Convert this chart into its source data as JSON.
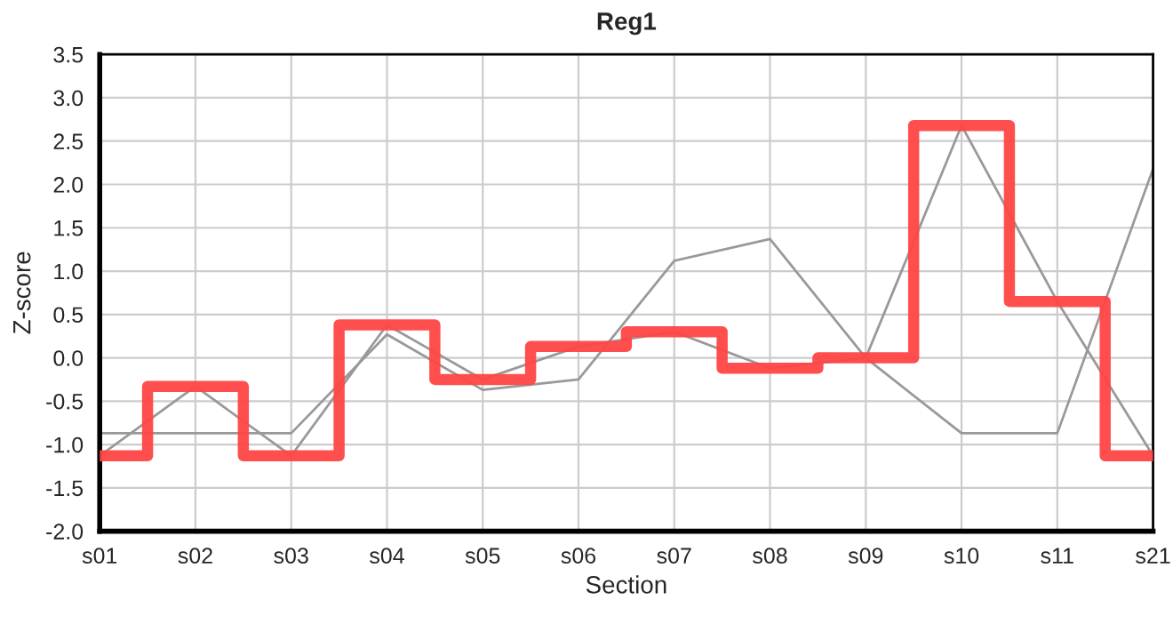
{
  "chart_data": {
    "type": "line",
    "title": "Reg1",
    "xlabel": "Section",
    "ylabel": "Z-score",
    "categories": [
      "s01",
      "s02",
      "s03",
      "s04",
      "s05",
      "s06",
      "s07",
      "s08",
      "s09",
      "s10",
      "s11",
      "s21"
    ],
    "series": [
      {
        "color": "#999999",
        "values": [
          -0.87,
          -0.87,
          -0.87,
          0.27,
          -0.37,
          -0.25,
          1.12,
          1.37,
          0.0,
          -0.87,
          -0.87,
          2.18
        ]
      },
      {
        "color": "#999999",
        "values": [
          -1.13,
          -0.33,
          -1.13,
          0.38,
          -0.25,
          0.13,
          0.3,
          -0.12,
          0.0,
          2.68,
          0.65,
          -1.13
        ]
      },
      {
        "type": "step",
        "color": "#ff4444",
        "values": [
          -1.13,
          -0.33,
          -1.13,
          0.38,
          -0.25,
          0.13,
          0.3,
          -0.12,
          0.0,
          2.68,
          0.65,
          -1.13
        ]
      }
    ],
    "ylim": [
      -2.0,
      3.5
    ],
    "yticks": [
      {
        "value": -2.0,
        "label": "-2.0"
      },
      {
        "value": -1.5,
        "label": "-1.5"
      },
      {
        "value": -1.0,
        "label": "-1.0"
      },
      {
        "value": -0.5,
        "label": "-0.5"
      },
      {
        "value": 0.0,
        "label": "0.0"
      },
      {
        "value": 0.5,
        "label": "0.5"
      },
      {
        "value": 1.0,
        "label": "1.0"
      },
      {
        "value": 1.5,
        "label": "1.5"
      },
      {
        "value": 2.0,
        "label": "2.0"
      },
      {
        "value": 2.5,
        "label": "2.5"
      },
      {
        "value": 3.0,
        "label": "3.0"
      },
      {
        "value": 3.5,
        "label": "3.5"
      }
    ],
    "grid": true,
    "marker": "none",
    "line_style": "solid"
  }
}
